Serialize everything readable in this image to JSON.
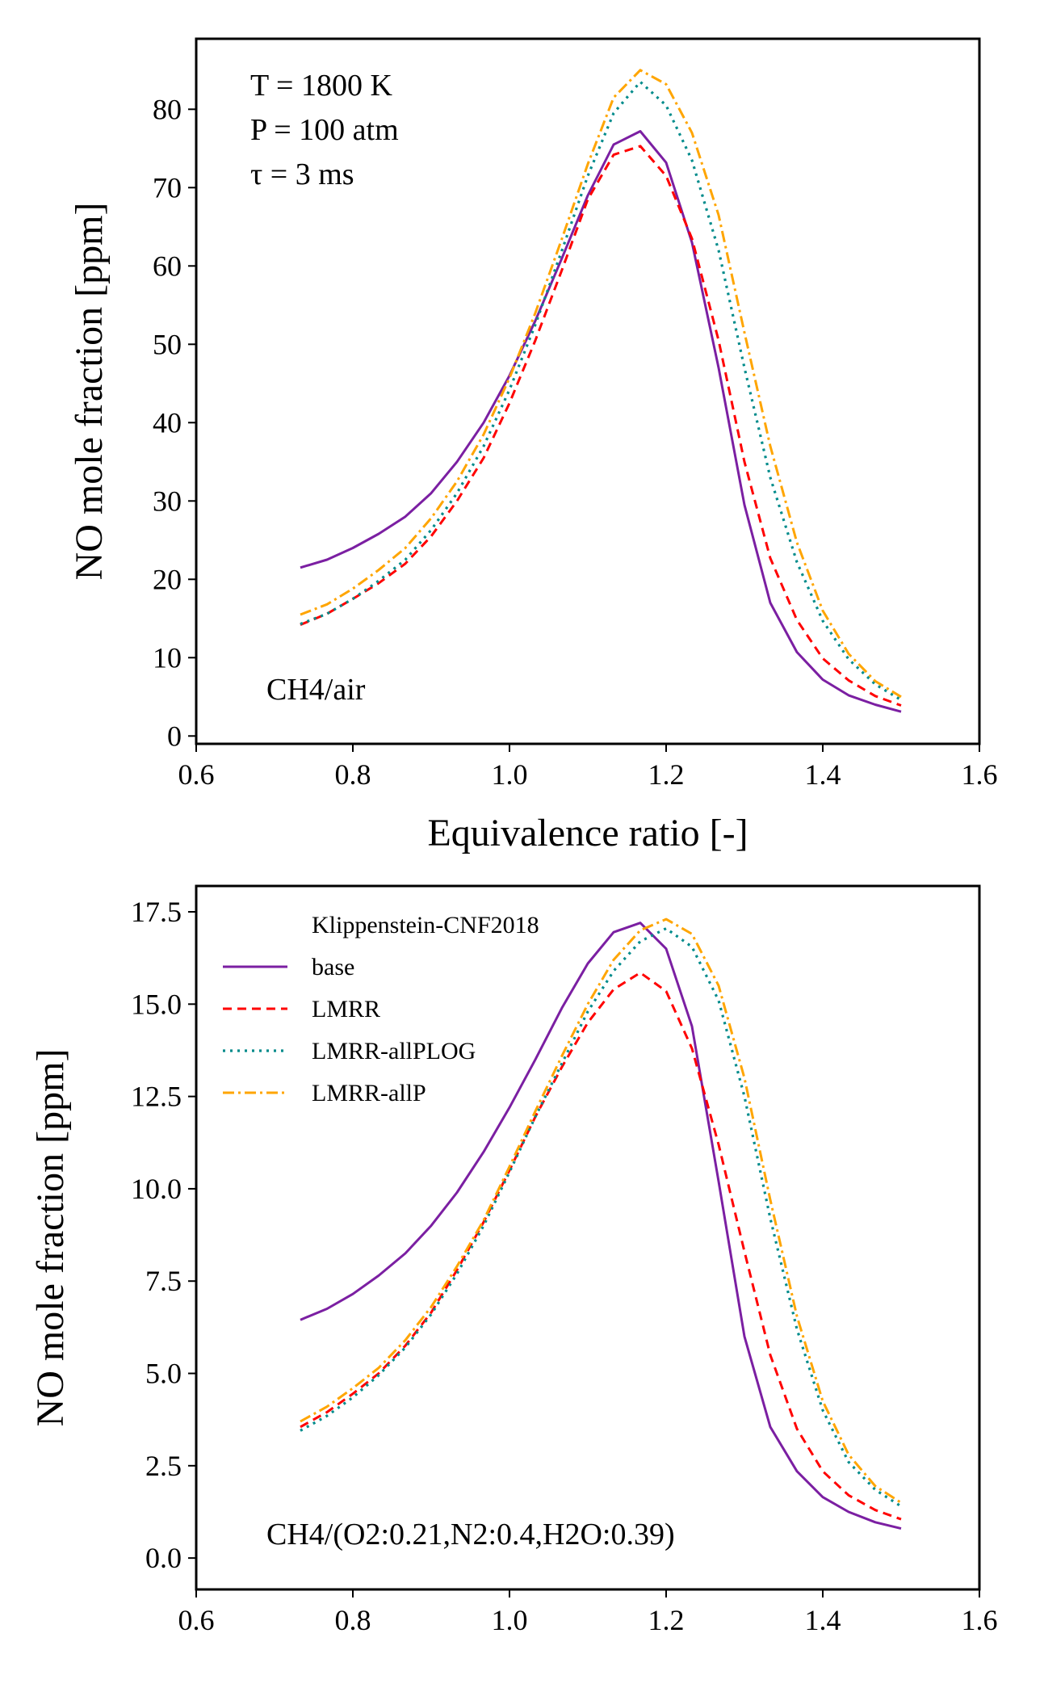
{
  "chart_data": [
    {
      "type": "line",
      "xlabel": "Equivalence ratio [-]",
      "ylabel": "NO mole fraction [ppm]",
      "xlim": [
        0.6,
        1.6
      ],
      "ylim": [
        -1,
        89
      ],
      "xticks": [
        "0.6",
        "0.8",
        "1.0",
        "1.2",
        "1.4",
        "1.6"
      ],
      "yticks": [
        "0",
        "10",
        "20",
        "30",
        "40",
        "50",
        "60",
        "70",
        "80"
      ],
      "conditions": [
        "T = 1800 K",
        "P = 100 atm",
        "τ = 3 ms"
      ],
      "mixture": "CH4/air",
      "x": [
        0.733,
        0.767,
        0.8,
        0.833,
        0.867,
        0.9,
        0.933,
        0.967,
        1.0,
        1.033,
        1.067,
        1.1,
        1.133,
        1.167,
        1.2,
        1.233,
        1.267,
        1.3,
        1.333,
        1.367,
        1.4,
        1.433,
        1.467,
        1.5
      ],
      "series": [
        {
          "values": [
            21.5,
            22.5,
            24,
            25.8,
            28,
            31,
            35,
            40,
            46,
            53,
            61,
            69,
            75.5,
            77.2,
            73.2,
            63,
            47,
            29.5,
            17,
            10.7,
            7.2,
            5.2,
            4,
            3.1
          ]
        },
        {
          "values": [
            14.2,
            15.6,
            17.5,
            19.5,
            22,
            25.5,
            30,
            35.5,
            42.5,
            50.5,
            59.5,
            68.5,
            74.2,
            75.3,
            71.5,
            63.5,
            50.5,
            35,
            22.7,
            14.8,
            9.9,
            7.1,
            5.1,
            3.9
          ]
        },
        {
          "values": [
            14.3,
            15.6,
            17.5,
            19.8,
            22.5,
            26.3,
            31,
            37,
            44.2,
            52.5,
            62,
            71.5,
            79.5,
            83.5,
            80.5,
            73.5,
            62,
            47,
            33,
            22.2,
            14.7,
            9.8,
            6.6,
            4.6
          ]
        },
        {
          "values": [
            15.5,
            16.8,
            18.8,
            21.2,
            24,
            27.8,
            32.5,
            38.5,
            45.7,
            54,
            63.5,
            73,
            81.5,
            85,
            83.2,
            77,
            66.5,
            51.5,
            37,
            24.7,
            16,
            10.5,
            7,
            5
          ]
        }
      ]
    },
    {
      "type": "line",
      "xlabel": "",
      "ylabel": "NO mole fraction [ppm]",
      "xlim": [
        0.6,
        1.6
      ],
      "ylim": [
        -0.85,
        18.2
      ],
      "xticks": [
        "0.6",
        "0.8",
        "1.0",
        "1.2",
        "1.4",
        "1.6"
      ],
      "yticks": [
        "0.0",
        "2.5",
        "5.0",
        "7.5",
        "10.0",
        "12.5",
        "15.0",
        "17.5"
      ],
      "mixture": "CH4/(O2:0.21,N2:0.4,H2O:0.39)",
      "legend_title": "Klippenstein-CNF2018",
      "legend_position": "upper-left",
      "x": [
        0.733,
        0.767,
        0.8,
        0.833,
        0.867,
        0.9,
        0.933,
        0.967,
        1.0,
        1.033,
        1.067,
        1.1,
        1.133,
        1.167,
        1.2,
        1.233,
        1.267,
        1.3,
        1.333,
        1.367,
        1.4,
        1.433,
        1.467,
        1.5
      ],
      "series": [
        {
          "name": "base",
          "color": "#7B1FA2",
          "dash": "solid",
          "values": [
            6.45,
            6.75,
            7.15,
            7.65,
            8.25,
            9.0,
            9.9,
            11.0,
            12.2,
            13.5,
            14.9,
            16.1,
            16.95,
            17.2,
            16.5,
            14.4,
            10.2,
            6.0,
            3.55,
            2.35,
            1.65,
            1.25,
            0.97,
            0.8
          ]
        },
        {
          "name": "LMRR",
          "color": "#FF0000",
          "dash": "dashed",
          "values": [
            3.55,
            3.95,
            4.45,
            5.0,
            5.75,
            6.65,
            7.8,
            9.1,
            10.5,
            11.95,
            13.3,
            14.5,
            15.4,
            15.85,
            15.35,
            13.8,
            11.2,
            8.3,
            5.5,
            3.5,
            2.35,
            1.7,
            1.3,
            1.05
          ]
        },
        {
          "name": "LMRR-allPLOG",
          "color": "#008B8B",
          "dash": "dotted",
          "values": [
            3.45,
            3.85,
            4.35,
            4.95,
            5.7,
            6.6,
            7.7,
            9.0,
            10.45,
            11.95,
            13.4,
            14.8,
            15.9,
            16.7,
            17.05,
            16.55,
            15.1,
            12.5,
            9.2,
            6.2,
            4.0,
            2.6,
            1.85,
            1.4
          ]
        },
        {
          "name": "LMRR-allP",
          "color": "#FFA500",
          "dash": "dashdot",
          "values": [
            3.7,
            4.1,
            4.6,
            5.15,
            5.9,
            6.8,
            7.9,
            9.15,
            10.6,
            12.1,
            13.6,
            15.0,
            16.2,
            17.0,
            17.3,
            16.9,
            15.5,
            13.0,
            9.7,
            6.55,
            4.25,
            2.8,
            1.95,
            1.5
          ]
        }
      ]
    }
  ]
}
